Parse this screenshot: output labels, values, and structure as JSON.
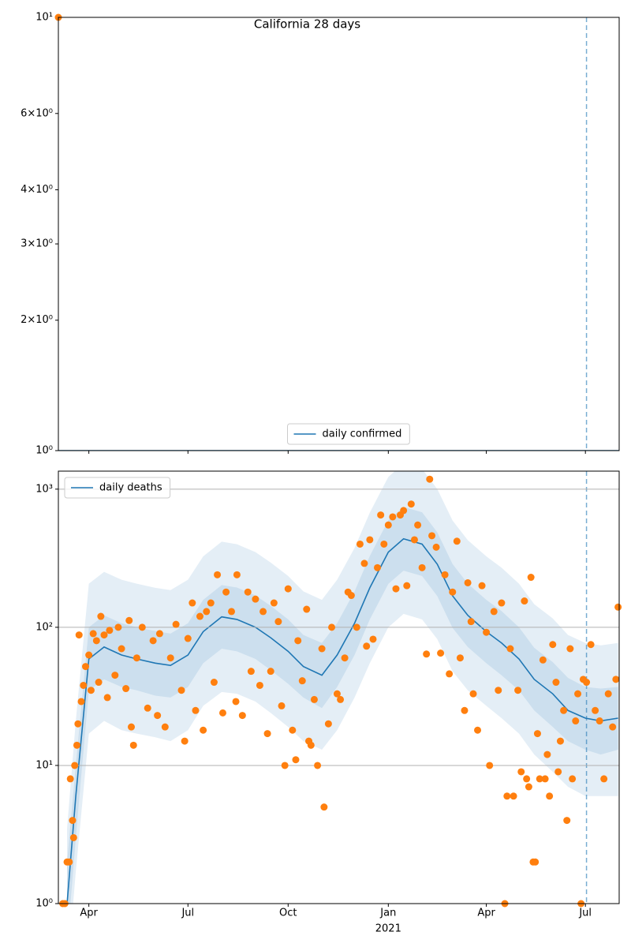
{
  "chart_data": [
    {
      "type": "line",
      "title": "California 28 days",
      "xlim": [
        "2020-03-04",
        "2021-08-01"
      ],
      "xticks": [
        "2020-04-01",
        "2020-07-01",
        "2020-10-01",
        "2021-01-01",
        "2021-04-01",
        "2021-07-01"
      ],
      "log_y": true,
      "ylim": [
        1,
        10
      ],
      "yticks": [
        {
          "value": 1,
          "label": "10⁰"
        },
        {
          "value": 2,
          "label": "2×10⁰"
        },
        {
          "value": 3,
          "label": "3×10⁰"
        },
        {
          "value": 4,
          "label": "4×10⁰"
        },
        {
          "value": 6,
          "label": "6×10⁰"
        },
        {
          "value": 10,
          "label": "10¹"
        }
      ],
      "grid": false,
      "legend": "lower center",
      "vline": "2021-07-02",
      "series": [
        {
          "kind": "line",
          "name": "daily confirmed",
          "color": "#1f77b4",
          "x": [
            "2020-03-04",
            "2021-08-01"
          ],
          "values": [
            1,
            1
          ]
        },
        {
          "kind": "scatter",
          "color": "#ff7f0e",
          "x": [
            "2020-03-04"
          ],
          "values": [
            10
          ]
        }
      ]
    },
    {
      "type": "line",
      "xlim": [
        "2020-03-04",
        "2021-08-01"
      ],
      "xticks": [
        {
          "value": "2020-04-01",
          "label": "Apr"
        },
        {
          "value": "2020-07-01",
          "label": "Jul"
        },
        {
          "value": "2020-10-01",
          "label": "Oct"
        },
        {
          "value": "2021-01-01",
          "label": "Jan"
        },
        {
          "value": "2021-04-01",
          "label": "Apr"
        },
        {
          "value": "2021-07-01",
          "label": "Jul"
        }
      ],
      "x_year_label": {
        "value": "2021-01-01",
        "label": "2021"
      },
      "log_y": true,
      "ylim": [
        1,
        1350
      ],
      "yticks": [
        {
          "value": 1,
          "label": "10⁰"
        },
        {
          "value": 10,
          "label": "10¹"
        },
        {
          "value": 100,
          "label": "10²"
        },
        {
          "value": 1000,
          "label": "10³"
        }
      ],
      "grid": true,
      "legend": "upper left",
      "vline": "2021-07-02",
      "series": [
        {
          "kind": "band",
          "color": "#1f77b4",
          "x": [
            "2020-03-12",
            "2020-03-20",
            "2020-04-01",
            "2020-04-15",
            "2020-05-01",
            "2020-05-15",
            "2020-06-01",
            "2020-06-15",
            "2020-07-01",
            "2020-07-15",
            "2020-08-01",
            "2020-08-15",
            "2020-09-01",
            "2020-09-15",
            "2020-10-01",
            "2020-10-15",
            "2020-11-01",
            "2020-11-15",
            "2020-12-01",
            "2020-12-15",
            "2021-01-01",
            "2021-01-15",
            "2021-02-01",
            "2021-02-15",
            "2021-03-01",
            "2021-03-15",
            "2021-04-01",
            "2021-04-15",
            "2021-05-01",
            "2021-05-15",
            "2021-06-01",
            "2021-06-15",
            "2021-07-01",
            "2021-07-15",
            "2021-07-31"
          ],
          "lower": [
            0.3,
            1.7,
            17,
            21,
            18,
            17,
            16,
            15,
            18,
            27,
            34,
            33,
            29,
            24,
            19,
            15,
            13,
            18,
            31,
            55,
            100,
            125,
            114,
            82,
            48,
            35,
            27,
            22,
            17,
            12,
            9,
            7,
            6,
            6,
            6
          ],
          "upper": [
            3.5,
            21,
            207,
            252,
            221,
            207,
            193,
            186,
            221,
            326,
            417,
            399,
            350,
            294,
            235,
            182,
            158,
            221,
            375,
            676,
            1225,
            1530,
            1400,
            1001,
            592,
            427,
            326,
            270,
            207,
            147,
            116,
            88,
            77,
            74,
            77
          ]
        },
        {
          "kind": "band",
          "color": "#1f77b4",
          "x": [
            "2020-03-12",
            "2020-03-20",
            "2020-04-01",
            "2020-04-15",
            "2020-05-01",
            "2020-05-15",
            "2020-06-01",
            "2020-06-15",
            "2020-07-01",
            "2020-07-15",
            "2020-08-01",
            "2020-08-15",
            "2020-09-01",
            "2020-09-15",
            "2020-10-01",
            "2020-10-15",
            "2020-11-01",
            "2020-11-15",
            "2020-12-01",
            "2020-12-15",
            "2021-01-01",
            "2021-01-15",
            "2021-02-01",
            "2021-02-15",
            "2021-03-01",
            "2021-03-15",
            "2021-04-01",
            "2021-04-15",
            "2021-05-01",
            "2021-05-15",
            "2021-06-01",
            "2021-06-15",
            "2021-07-01",
            "2021-07-15",
            "2021-07-31"
          ],
          "lower": [
            0.5,
            3,
            35,
            42,
            37,
            35,
            32,
            31,
            37,
            55,
            70,
            67,
            59,
            49,
            39,
            31,
            26,
            37,
            63,
            114,
            206,
            257,
            235,
            168,
            99,
            72,
            55,
            45,
            35,
            25,
            19,
            15,
            13,
            12,
            13
          ],
          "upper": [
            2,
            10,
            100,
            122,
            107,
            100,
            94,
            90,
            107,
            158,
            202,
            194,
            170,
            143,
            114,
            88,
            77,
            107,
            182,
            328,
            595,
            743,
            680,
            486,
            287,
            207,
            158,
            131,
            100,
            71,
            56,
            43,
            37,
            36,
            37
          ]
        },
        {
          "kind": "line",
          "name": "daily deaths",
          "color": "#1f77b4",
          "x": [
            "2020-03-12",
            "2020-03-20",
            "2020-04-01",
            "2020-04-15",
            "2020-05-01",
            "2020-05-15",
            "2020-06-01",
            "2020-06-15",
            "2020-07-01",
            "2020-07-15",
            "2020-08-01",
            "2020-08-15",
            "2020-09-01",
            "2020-09-15",
            "2020-10-01",
            "2020-10-15",
            "2020-11-01",
            "2020-11-15",
            "2020-12-01",
            "2020-12-15",
            "2021-01-01",
            "2021-01-15",
            "2021-02-01",
            "2021-02-15",
            "2021-03-01",
            "2021-03-15",
            "2021-04-01",
            "2021-04-15",
            "2021-05-01",
            "2021-05-15",
            "2021-06-01",
            "2021-06-15",
            "2021-07-01",
            "2021-07-15",
            "2021-07-31"
          ],
          "values": [
            1,
            6,
            59,
            72,
            63,
            59,
            55,
            53,
            63,
            93,
            119,
            114,
            100,
            84,
            67,
            52,
            45,
            63,
            107,
            193,
            350,
            437,
            400,
            286,
            169,
            122,
            93,
            77,
            59,
            42,
            33,
            25,
            22,
            21,
            22
          ]
        },
        {
          "kind": "scatter",
          "color": "#ff7f0e",
          "x": [
            "2020-03-08",
            "2020-03-10",
            "2020-03-12",
            "2020-03-14",
            "2020-03-15",
            "2020-03-17",
            "2020-03-18",
            "2020-03-19",
            "2020-03-21",
            "2020-03-22",
            "2020-03-23",
            "2020-03-25",
            "2020-03-27",
            "2020-03-29",
            "2020-04-01",
            "2020-04-03",
            "2020-04-05",
            "2020-04-08",
            "2020-04-10",
            "2020-04-12",
            "2020-04-15",
            "2020-04-18",
            "2020-04-20",
            "2020-04-25",
            "2020-04-28",
            "2020-05-01",
            "2020-05-05",
            "2020-05-08",
            "2020-05-10",
            "2020-05-12",
            "2020-05-15",
            "2020-05-20",
            "2020-05-25",
            "2020-05-30",
            "2020-06-03",
            "2020-06-05",
            "2020-06-10",
            "2020-06-15",
            "2020-06-20",
            "2020-06-25",
            "2020-06-28",
            "2020-07-01",
            "2020-07-05",
            "2020-07-08",
            "2020-07-12",
            "2020-07-15",
            "2020-07-18",
            "2020-07-22",
            "2020-07-25",
            "2020-07-28",
            "2020-08-02",
            "2020-08-05",
            "2020-08-10",
            "2020-08-14",
            "2020-08-15",
            "2020-08-20",
            "2020-08-25",
            "2020-08-28",
            "2020-09-01",
            "2020-09-05",
            "2020-09-08",
            "2020-09-12",
            "2020-09-15",
            "2020-09-18",
            "2020-09-22",
            "2020-09-25",
            "2020-09-28",
            "2020-10-01",
            "2020-10-05",
            "2020-10-08",
            "2020-10-10",
            "2020-10-14",
            "2020-10-18",
            "2020-10-20",
            "2020-10-22",
            "2020-10-25",
            "2020-10-28",
            "2020-11-01",
            "2020-11-03",
            "2020-11-07",
            "2020-11-10",
            "2020-11-15",
            "2020-11-18",
            "2020-11-22",
            "2020-11-25",
            "2020-11-28",
            "2020-12-03",
            "2020-12-06",
            "2020-12-10",
            "2020-12-12",
            "2020-12-15",
            "2020-12-18",
            "2020-12-22",
            "2020-12-25",
            "2020-12-28",
            "2021-01-01",
            "2021-01-05",
            "2021-01-08",
            "2021-01-12",
            "2021-01-15",
            "2021-01-18",
            "2021-01-22",
            "2021-01-25",
            "2021-01-28",
            "2021-02-01",
            "2021-02-05",
            "2021-02-08",
            "2021-02-10",
            "2021-02-14",
            "2021-02-18",
            "2021-02-22",
            "2021-02-26",
            "2021-03-01",
            "2021-03-05",
            "2021-03-08",
            "2021-03-12",
            "2021-03-15",
            "2021-03-18",
            "2021-03-20",
            "2021-03-24",
            "2021-03-28",
            "2021-04-01",
            "2021-04-04",
            "2021-04-08",
            "2021-04-12",
            "2021-04-15",
            "2021-04-18",
            "2021-04-20",
            "2021-04-23",
            "2021-04-26",
            "2021-04-30",
            "2021-05-03",
            "2021-05-06",
            "2021-05-08",
            "2021-05-10",
            "2021-05-12",
            "2021-05-14",
            "2021-05-16",
            "2021-05-18",
            "2021-05-20",
            "2021-05-23",
            "2021-05-25",
            "2021-05-27",
            "2021-05-29",
            "2021-06-01",
            "2021-06-04",
            "2021-06-06",
            "2021-06-08",
            "2021-06-11",
            "2021-06-14",
            "2021-06-17",
            "2021-06-19",
            "2021-06-22",
            "2021-06-24",
            "2021-06-27",
            "2021-06-29",
            "2021-07-02",
            "2021-07-06",
            "2021-07-10",
            "2021-07-14",
            "2021-07-18",
            "2021-07-22",
            "2021-07-26",
            "2021-07-29",
            "2021-07-31"
          ],
          "values": [
            1,
            1,
            2,
            2,
            8,
            4,
            3,
            10,
            14,
            20,
            88,
            29,
            38,
            52,
            63,
            35,
            90,
            80,
            40,
            120,
            88,
            31,
            95,
            45,
            100,
            70,
            36,
            112,
            19,
            14,
            60,
            100,
            26,
            80,
            23,
            90,
            19,
            60,
            105,
            35,
            15,
            83,
            150,
            25,
            120,
            18,
            130,
            150,
            40,
            240,
            24,
            180,
            130,
            29,
            240,
            23,
            180,
            48,
            160,
            38,
            130,
            17,
            48,
            150,
            110,
            27,
            10,
            190,
            18,
            11,
            80,
            41,
            135,
            15,
            14,
            30,
            10,
            70,
            5,
            20,
            100,
            33,
            30,
            60,
            180,
            170,
            100,
            400,
            290,
            73,
            430,
            82,
            270,
            650,
            400,
            550,
            630,
            190,
            650,
            700,
            200,
            780,
            430,
            550,
            270,
            64,
            1180,
            460,
            380,
            65,
            240,
            46,
            180,
            420,
            60,
            25,
            210,
            110,
            33,
            18,
            200,
            92,
            10,
            130,
            35,
            150,
            1,
            6,
            70,
            6,
            35,
            9,
            155,
            8,
            7,
            230,
            2,
            2,
            17,
            8,
            58,
            8,
            12,
            6,
            75,
            40,
            9,
            15,
            25,
            4,
            70,
            8,
            21,
            33,
            1,
            42,
            40,
            75,
            25,
            21,
            8,
            33,
            19,
            42,
            140
          ]
        }
      ]
    }
  ]
}
